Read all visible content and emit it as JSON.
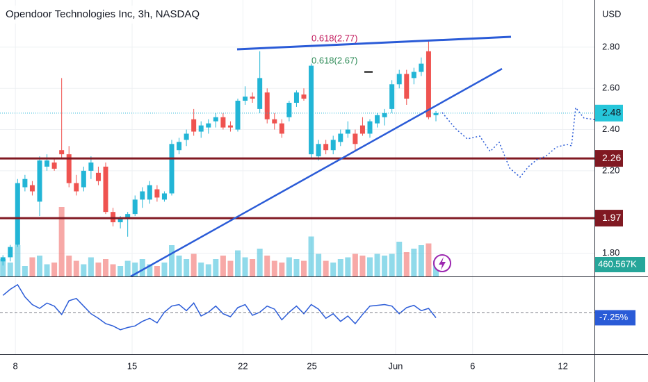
{
  "chart_data": {
    "type": "candlestick",
    "title": "Opendoor Technologies Inc, 3h, NASDAQ",
    "currency": "USD",
    "up_color": "#22b5d6",
    "down_color": "#ef5350",
    "categories": [
      null,
      null,
      null,
      null,
      null,
      null,
      null,
      null,
      null,
      null,
      null,
      null,
      null,
      null,
      null,
      null,
      null,
      null,
      null,
      null,
      null,
      null,
      null,
      null,
      null,
      null,
      null,
      null,
      null,
      null,
      null,
      null,
      null,
      null,
      null,
      null,
      null,
      null,
      null,
      null,
      null,
      null,
      null,
      null,
      null,
      null,
      null,
      null,
      null,
      null,
      null,
      null,
      null,
      null,
      null,
      null,
      null,
      null,
      null,
      null
    ],
    "open": [
      1.76,
      1.78,
      1.84,
      2.12,
      2.13,
      2.05,
      2.22,
      2.24,
      2.3,
      2.28,
      2.14,
      2.12,
      2.2,
      2.19,
      2.22,
      2.0,
      1.95,
      1.97,
      1.99,
      2.06,
      2.06,
      2.11,
      2.06,
      2.09,
      2.3,
      2.35,
      2.45,
      2.39,
      2.41,
      2.44,
      2.46,
      2.42,
      2.4,
      2.54,
      2.56,
      2.5,
      2.58,
      2.45,
      2.43,
      2.46,
      2.53,
      2.57,
      2.28,
      2.27,
      2.33,
      2.3,
      2.34,
      2.38,
      2.38,
      2.42,
      2.38,
      2.43,
      2.46,
      2.5,
      2.62,
      2.67,
      2.65,
      2.68,
      2.78,
      2.47
    ],
    "high": [
      1.79,
      1.84,
      2.16,
      2.18,
      2.15,
      2.27,
      2.28,
      2.26,
      2.65,
      2.32,
      2.18,
      2.22,
      2.27,
      2.22,
      2.24,
      2.02,
      1.98,
      2.0,
      2.08,
      2.12,
      2.15,
      2.13,
      2.1,
      2.35,
      2.36,
      2.4,
      2.5,
      2.44,
      2.45,
      2.48,
      2.48,
      2.44,
      2.55,
      2.61,
      2.58,
      2.78,
      2.6,
      2.48,
      2.45,
      2.54,
      2.59,
      2.6,
      2.72,
      2.35,
      2.35,
      2.37,
      2.4,
      2.44,
      2.4,
      2.46,
      2.45,
      2.48,
      2.5,
      2.64,
      2.69,
      2.69,
      2.7,
      2.75,
      2.83,
      2.49
    ],
    "low": [
      1.74,
      1.76,
      1.83,
      2.1,
      2.08,
      1.98,
      2.2,
      2.2,
      2.26,
      2.12,
      2.08,
      2.1,
      2.16,
      2.13,
      1.99,
      1.93,
      1.92,
      1.88,
      1.98,
      2.02,
      2.04,
      2.05,
      2.05,
      2.08,
      2.28,
      2.32,
      2.37,
      2.36,
      2.38,
      2.41,
      2.4,
      2.39,
      2.39,
      2.52,
      2.53,
      2.48,
      2.43,
      2.4,
      2.36,
      2.44,
      2.51,
      2.54,
      2.26,
      2.25,
      2.28,
      2.28,
      2.32,
      2.36,
      2.3,
      2.37,
      2.36,
      2.41,
      2.42,
      2.48,
      2.6,
      2.52,
      2.62,
      2.66,
      2.45,
      2.44
    ],
    "close": [
      1.78,
      1.83,
      2.14,
      2.16,
      2.1,
      2.25,
      2.25,
      2.21,
      2.28,
      2.14,
      2.1,
      2.2,
      2.24,
      2.15,
      2.0,
      1.95,
      1.97,
      1.99,
      2.06,
      2.1,
      2.13,
      2.07,
      2.09,
      2.33,
      2.34,
      2.38,
      2.39,
      2.42,
      2.43,
      2.46,
      2.41,
      2.41,
      2.54,
      2.56,
      2.55,
      2.65,
      2.45,
      2.43,
      2.38,
      2.53,
      2.58,
      2.55,
      2.71,
      2.33,
      2.3,
      2.35,
      2.38,
      2.4,
      2.33,
      2.38,
      2.44,
      2.47,
      2.48,
      2.62,
      2.67,
      2.55,
      2.68,
      2.72,
      2.46,
      2.48
    ],
    "volume": [
      500,
      400,
      900,
      300,
      550,
      600,
      350,
      400,
      2000,
      600,
      450,
      350,
      550,
      400,
      500,
      350,
      300,
      450,
      400,
      500,
      350,
      300,
      400,
      900,
      600,
      500,
      650,
      400,
      350,
      500,
      600,
      450,
      750,
      550,
      500,
      800,
      600,
      450,
      400,
      550,
      500,
      450,
      1150,
      650,
      450,
      400,
      500,
      550,
      650,
      600,
      550,
      650,
      600,
      650,
      1000,
      700,
      800,
      900,
      950,
      460.567
    ],
    "volume_last_label": "460.567K",
    "oscillator": [
      22,
      30,
      36,
      20,
      10,
      5,
      12,
      8,
      -3,
      15,
      18,
      8,
      -2,
      -8,
      -15,
      -18,
      -23,
      -20,
      -18,
      -12,
      -8,
      -14,
      0,
      8,
      10,
      2,
      12,
      -5,
      0,
      8,
      -2,
      -6,
      6,
      10,
      -4,
      0,
      8,
      4,
      -10,
      0,
      8,
      -2,
      10,
      4,
      -8,
      -2,
      -12,
      -5,
      -15,
      -3,
      8,
      9,
      10,
      8,
      -2,
      6,
      9,
      2,
      5,
      -7.25
    ],
    "oscillator_last_label": "-7.25%",
    "oscillator_ylim": [
      -55,
      45
    ],
    "levels": [
      2.26,
      1.97
    ],
    "level_color": "#801922",
    "last_price": 2.48,
    "annotations": [
      "0.618(2.77)",
      "0.618(2.67)"
    ],
    "xlim": [
      -0.4,
      80.6
    ],
    "xticks": [
      {
        "value": 1.7,
        "label": "8"
      },
      {
        "value": 17.6,
        "label": "15"
      },
      {
        "value": 32.7,
        "label": "22"
      },
      {
        "value": 42.1,
        "label": "25"
      },
      {
        "value": 53.5,
        "label": "Jun"
      },
      {
        "value": 64,
        "label": "6"
      },
      {
        "value": 76.3,
        "label": "12"
      }
    ],
    "ylim": [
      1.687,
      3.029
    ],
    "yticks": [
      {
        "value": 2.8,
        "label": "2.80"
      },
      {
        "value": 2.6,
        "label": "2.60"
      },
      {
        "value": 2.4,
        "label": "2.40"
      },
      {
        "value": 2.2,
        "label": "2.20"
      },
      {
        "value": 1.8,
        "label": "1.80"
      }
    ],
    "grid": true
  }
}
